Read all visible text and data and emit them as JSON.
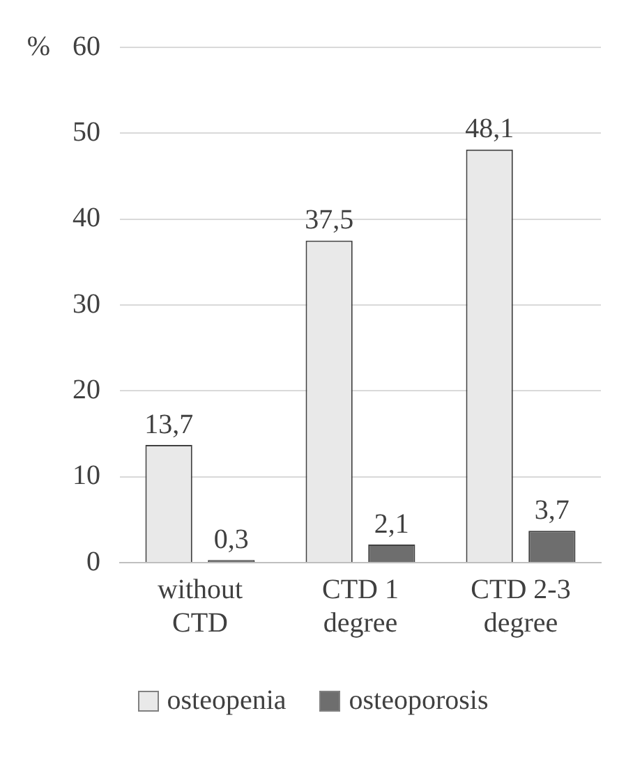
{
  "chart_data": {
    "type": "bar",
    "ylabel": "%",
    "categories": [
      "without CTD",
      "CTD 1 degree",
      "CTD 2-3 degree"
    ],
    "series": [
      {
        "name": "osteopenia",
        "color": "#e9e9e9",
        "values": [
          13.7,
          37.5,
          48.1
        ],
        "value_labels": [
          "13,7",
          "37,5",
          "48,1"
        ]
      },
      {
        "name": "osteoporosis",
        "color": "#6e6e6e",
        "values": [
          0.3,
          2.1,
          3.7
        ],
        "value_labels": [
          "0,3",
          "2,1",
          "3,7"
        ]
      }
    ],
    "ylim": [
      0,
      60
    ],
    "yticks": [
      0,
      10,
      20,
      30,
      40,
      50,
      60
    ],
    "grid": "y",
    "legend": "bottom"
  }
}
